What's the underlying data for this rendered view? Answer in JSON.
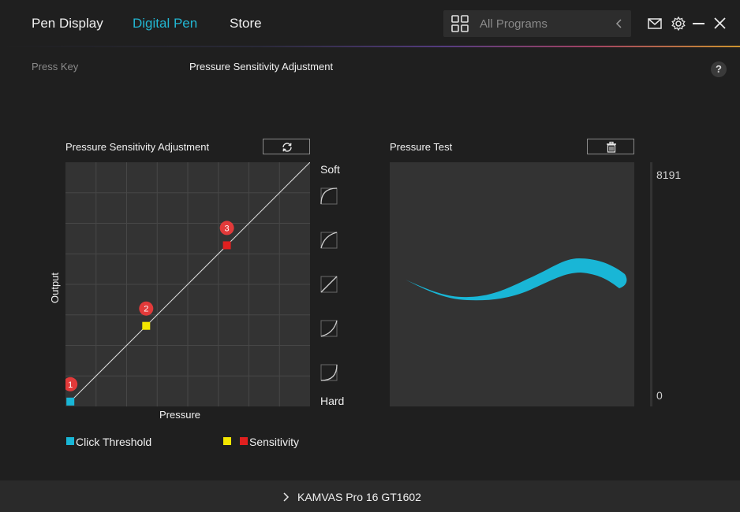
{
  "nav": {
    "tabs": [
      {
        "label": "Pen Display",
        "active": false
      },
      {
        "label": "Digital Pen",
        "active": true
      },
      {
        "label": "Store",
        "active": false
      }
    ]
  },
  "search": {
    "placeholder": "All Programs"
  },
  "window_controls": [
    "mail-icon",
    "settings-gear-icon",
    "minimize-icon",
    "close-icon"
  ],
  "subnav": {
    "items": [
      {
        "label": "Press Key",
        "active": false
      },
      {
        "label": "Pressure Sensitivity Adjustment",
        "active": true
      }
    ],
    "help": "?"
  },
  "sensitivity_panel": {
    "title": "Pressure Sensitivity Adjustment",
    "reset_icon": "refresh-icon",
    "x_label": "Pressure",
    "y_label": "Output",
    "soft_label": "Soft",
    "hard_label": "Hard",
    "presets": [
      "curve-soft-2-icon",
      "curve-soft-1-icon",
      "curve-linear-icon",
      "curve-hard-1-icon",
      "curve-hard-2-icon"
    ],
    "points": [
      {
        "id": "1",
        "pressure": 0.02,
        "output": 0.02,
        "color": "#19b6d6"
      },
      {
        "id": "2",
        "pressure": 0.33,
        "output": 0.33,
        "color": "#f2e600"
      },
      {
        "id": "3",
        "pressure": 0.66,
        "output": 0.66,
        "color": "#e0201f"
      }
    ]
  },
  "pressure_test": {
    "title": "Pressure Test",
    "clear_icon": "trash-icon",
    "max_label": "8191",
    "min_label": "0"
  },
  "legend": {
    "click_threshold": "Click Threshold",
    "sensitivity": "Sensitivity"
  },
  "colors": {
    "accent": "#22b6d2",
    "threshold": "#19b6d6",
    "sensitivity_yellow": "#f2e600",
    "sensitivity_red": "#e0201f",
    "stroke": "#19b6d6"
  },
  "footer": {
    "device": "KAMVAS Pro 16 GT1602"
  }
}
